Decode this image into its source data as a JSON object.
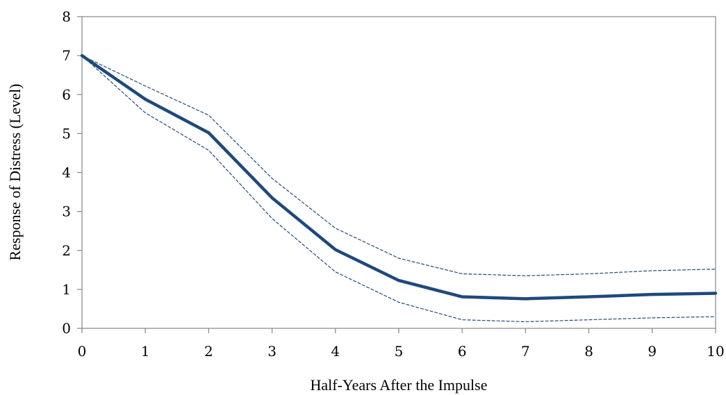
{
  "chart_data": {
    "type": "line",
    "xlabel": "Half-Years After the Impulse",
    "ylabel": "Response of Distress (Level)",
    "x": [
      0,
      1,
      2,
      3,
      4,
      5,
      6,
      7,
      8,
      9,
      10
    ],
    "xticks": [
      "0",
      "1",
      "2",
      "3",
      "4",
      "5",
      "6",
      "7",
      "8",
      "9",
      "10"
    ],
    "yticks": [
      "0",
      "1",
      "2",
      "3",
      "4",
      "5",
      "6",
      "7",
      "8"
    ],
    "xlim": [
      0,
      10
    ],
    "ylim": [
      0,
      8
    ],
    "grid": false,
    "series": [
      {
        "role": "response",
        "style": "solid",
        "color": "#1f497d",
        "values": [
          7.0,
          5.88,
          5.02,
          3.35,
          2.02,
          1.23,
          0.81,
          0.76,
          0.81,
          0.87,
          0.9
        ]
      },
      {
        "role": "upper-band",
        "style": "dashed",
        "color": "#1f497d",
        "values": [
          7.0,
          6.22,
          5.47,
          3.85,
          2.57,
          1.8,
          1.4,
          1.35,
          1.4,
          1.48,
          1.52
        ]
      },
      {
        "role": "lower-band",
        "style": "dashed",
        "color": "#1f497d",
        "values": [
          7.0,
          5.53,
          4.57,
          2.82,
          1.45,
          0.67,
          0.22,
          0.17,
          0.22,
          0.27,
          0.3
        ]
      }
    ]
  }
}
